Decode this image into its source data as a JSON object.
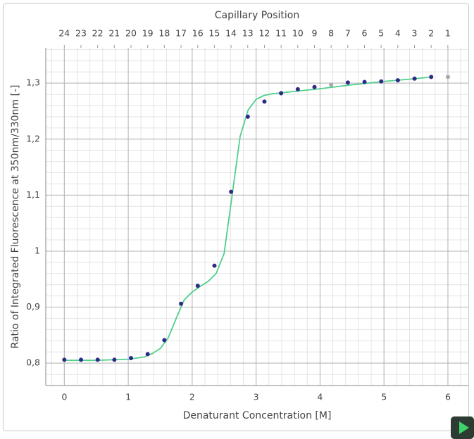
{
  "chart_data": {
    "type": "scatter",
    "title": "Capillary Position",
    "x_label": "Denaturant Concentration [M]",
    "y_label": "Ratio of Integrated Fluorescence at 350nm/330nm [-]",
    "x": [
      0,
      0.261,
      0.522,
      0.783,
      1.043,
      1.304,
      1.565,
      1.826,
      2.087,
      2.348,
      2.609,
      2.87,
      3.13,
      3.391,
      3.652,
      3.913,
      4.174,
      4.435,
      4.696,
      4.957,
      5.217,
      5.478,
      5.739,
      6
    ],
    "series": [
      {
        "color": "#2e2a86",
        "values": [
          0.806,
          0.806,
          0.806,
          0.806,
          0.809,
          0.816,
          0.841,
          0.906,
          0.938,
          0.974,
          1.106,
          1.24,
          1.267,
          1.282,
          1.289,
          1.293,
          null,
          1.301,
          1.302,
          1.303,
          1.305,
          1.308,
          1.311,
          null
        ]
      },
      {
        "color": "#a8a8a8",
        "values": [
          null,
          null,
          null,
          null,
          null,
          null,
          null,
          null,
          null,
          null,
          null,
          null,
          null,
          null,
          null,
          null,
          1.297,
          null,
          null,
          null,
          null,
          null,
          null,
          1.311
        ]
      }
    ],
    "fit": {
      "color": "#4fcf8e",
      "x": [
        0,
        0.25,
        0.5,
        0.75,
        1.0,
        1.25,
        1.375,
        1.5,
        1.625,
        1.75,
        1.875,
        2.0,
        2.125,
        2.25,
        2.375,
        2.5,
        2.625,
        2.75,
        2.875,
        3.0,
        3.125,
        3.25,
        3.5,
        4.0,
        4.5,
        5.0,
        5.5,
        5.75
      ],
      "values": [
        0.805,
        0.805,
        0.805,
        0.806,
        0.807,
        0.811,
        0.817,
        0.826,
        0.845,
        0.88,
        0.913,
        0.927,
        0.937,
        0.946,
        0.96,
        0.996,
        1.1,
        1.205,
        1.252,
        1.271,
        1.278,
        1.281,
        1.284,
        1.29,
        1.297,
        1.303,
        1.308,
        1.311
      ]
    },
    "xlim": [
      -0.29,
      6.32
    ],
    "ylim": [
      0.76,
      1.363
    ],
    "xticks": [
      0,
      1,
      2,
      3,
      4,
      5,
      6
    ],
    "yticks": [
      {
        "value": 0.8,
        "label": "0,8"
      },
      {
        "value": 0.9,
        "label": "0,9"
      },
      1,
      {
        "value": 1.1,
        "label": "1,1"
      },
      {
        "value": 1.2,
        "label": "1,2"
      },
      {
        "value": 1.3,
        "label": "1,3"
      }
    ],
    "x2lim": [
      25.11,
      -0.23
    ],
    "x2ticks": [
      24,
      23,
      22,
      21,
      20,
      19,
      18,
      17,
      16,
      15,
      14,
      13,
      12,
      11,
      10,
      9,
      8,
      7,
      6,
      5,
      4,
      3,
      2,
      1
    ],
    "grid": true
  }
}
